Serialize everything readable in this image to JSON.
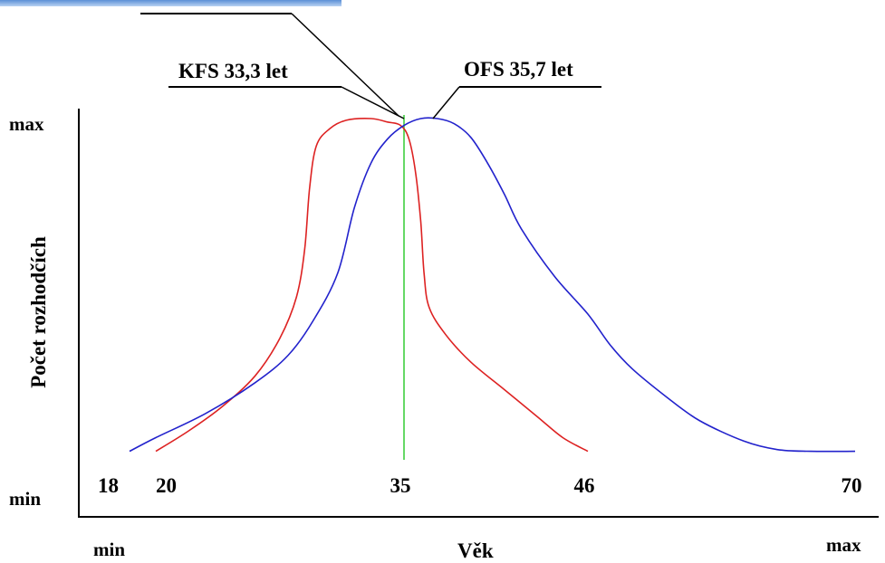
{
  "chart_data": {
    "type": "line",
    "xlabel": "Věk",
    "ylabel": "Počet rozhodčích",
    "x_axis_ends": {
      "min": "min",
      "max": "max"
    },
    "y_axis_ends": {
      "min": "min",
      "max": "max"
    },
    "x_ticks": [
      "18",
      "20",
      "35",
      "46",
      "70"
    ],
    "xlim": [
      17,
      70
    ],
    "ylim": [
      0,
      1
    ],
    "grid": false,
    "colors": {
      "KFS": "#dd2222",
      "OFS": "#2222cc",
      "marker": "#33cc33"
    },
    "series": [
      {
        "name": "KFS 33,3 let",
        "color": "#dd2222",
        "points": [
          [
            20,
            0.03
          ],
          [
            22,
            0.09
          ],
          [
            24,
            0.16
          ],
          [
            26,
            0.25
          ],
          [
            27.5,
            0.36
          ],
          [
            28.5,
            0.48
          ],
          [
            29,
            0.62
          ],
          [
            29.3,
            0.8
          ],
          [
            29.7,
            0.92
          ],
          [
            30.5,
            0.97
          ],
          [
            31.5,
            0.995
          ],
          [
            33,
            1.0
          ],
          [
            34,
            0.99
          ],
          [
            34.8,
            0.98
          ],
          [
            35.3,
            0.94
          ],
          [
            35.7,
            0.84
          ],
          [
            36,
            0.7
          ],
          [
            36.2,
            0.55
          ],
          [
            36.5,
            0.45
          ],
          [
            37.5,
            0.37
          ],
          [
            39,
            0.29
          ],
          [
            41,
            0.21
          ],
          [
            43,
            0.13
          ],
          [
            44.5,
            0.07
          ],
          [
            46,
            0.03
          ]
        ]
      },
      {
        "name": "OFS 35,7 let",
        "color": "#2222cc",
        "points": [
          [
            18,
            0.03
          ],
          [
            20,
            0.07
          ],
          [
            23,
            0.14
          ],
          [
            26,
            0.23
          ],
          [
            28,
            0.31
          ],
          [
            29.5,
            0.41
          ],
          [
            31,
            0.55
          ],
          [
            32,
            0.74
          ],
          [
            33,
            0.87
          ],
          [
            34,
            0.94
          ],
          [
            35,
            0.98
          ],
          [
            36,
            1.0
          ],
          [
            37,
            1.0
          ],
          [
            38,
            0.985
          ],
          [
            39,
            0.945
          ],
          [
            40,
            0.87
          ],
          [
            41,
            0.78
          ],
          [
            42,
            0.68
          ],
          [
            44,
            0.54
          ],
          [
            46,
            0.43
          ],
          [
            48,
            0.34
          ],
          [
            50,
            0.27
          ],
          [
            53,
            0.19
          ],
          [
            56,
            0.12
          ],
          [
            60,
            0.06
          ],
          [
            63,
            0.035
          ],
          [
            66,
            0.03
          ],
          [
            70,
            0.03
          ]
        ]
      }
    ],
    "reference_line": {
      "x": 35,
      "color": "#33cc33"
    },
    "annotations": [
      "KFS 33,3 let",
      "OFS 35,7 let"
    ]
  }
}
